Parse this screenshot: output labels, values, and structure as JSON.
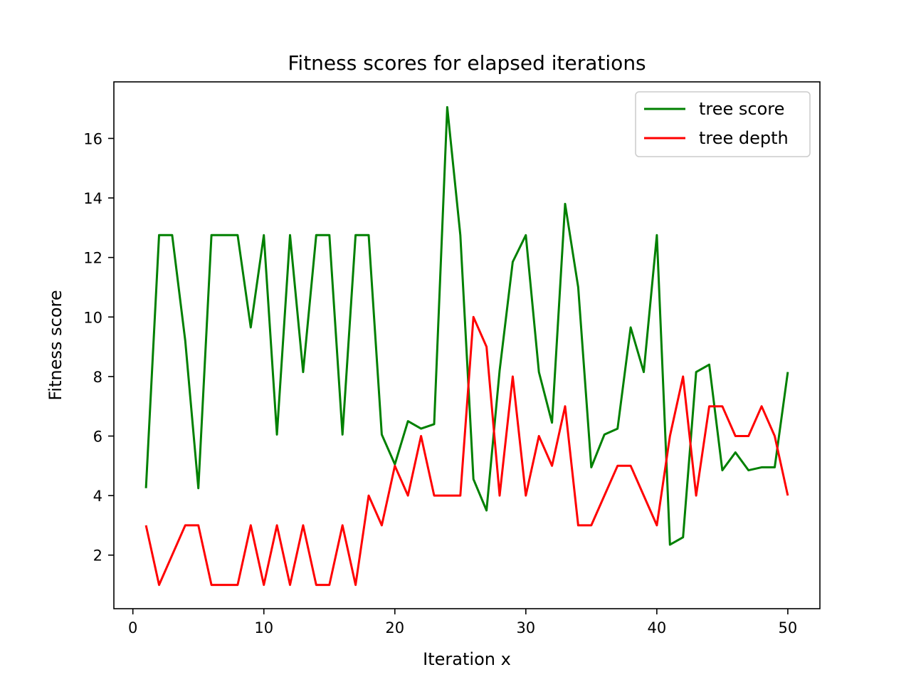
{
  "chart_data": {
    "type": "line",
    "title": "Fitness scores for elapsed iterations",
    "xlabel": "Iteration x",
    "ylabel": "Fitness score",
    "xlim": [
      -1.45,
      52.45
    ],
    "ylim": [
      0.2,
      17.9
    ],
    "xticks": [
      0,
      10,
      20,
      30,
      40,
      50
    ],
    "yticks": [
      2,
      4,
      6,
      8,
      10,
      12,
      14,
      16
    ],
    "grid": false,
    "legend_position": "top-right",
    "x": [
      1,
      2,
      3,
      4,
      5,
      6,
      7,
      8,
      9,
      10,
      11,
      12,
      13,
      14,
      15,
      16,
      17,
      18,
      19,
      20,
      21,
      22,
      23,
      24,
      25,
      26,
      27,
      28,
      29,
      30,
      31,
      32,
      33,
      34,
      35,
      36,
      37,
      38,
      39,
      40,
      41,
      42,
      43,
      44,
      45,
      46,
      47,
      48,
      49,
      50
    ],
    "series": [
      {
        "name": "tree score",
        "color": "#008000",
        "values": [
          4.25,
          12.75,
          12.75,
          9.2,
          4.25,
          12.75,
          12.75,
          12.75,
          9.65,
          12.75,
          6.05,
          12.75,
          8.15,
          12.75,
          12.75,
          6.05,
          12.75,
          12.75,
          6.05,
          5.05,
          6.5,
          6.25,
          6.4,
          17.05,
          12.75,
          4.55,
          3.5,
          8.2,
          11.85,
          12.75,
          8.15,
          6.45,
          13.8,
          11.0,
          4.95,
          6.05,
          6.25,
          9.65,
          8.15,
          12.75,
          2.35,
          2.6,
          8.15,
          8.4,
          4.85,
          5.45,
          4.85,
          4.95,
          4.95,
          8.15
        ]
      },
      {
        "name": "tree depth",
        "color": "#ff0000",
        "values": [
          3,
          1,
          2,
          3,
          3,
          1,
          1,
          1,
          3,
          1,
          3,
          1,
          3,
          1,
          1,
          3,
          1,
          4,
          3,
          5,
          4,
          6,
          4,
          4,
          4,
          10,
          9,
          4,
          8,
          4,
          6,
          5,
          7,
          3,
          3,
          4,
          5,
          5,
          4,
          3,
          6,
          8,
          4,
          7,
          7,
          6,
          6,
          7,
          6,
          4
        ]
      }
    ]
  }
}
